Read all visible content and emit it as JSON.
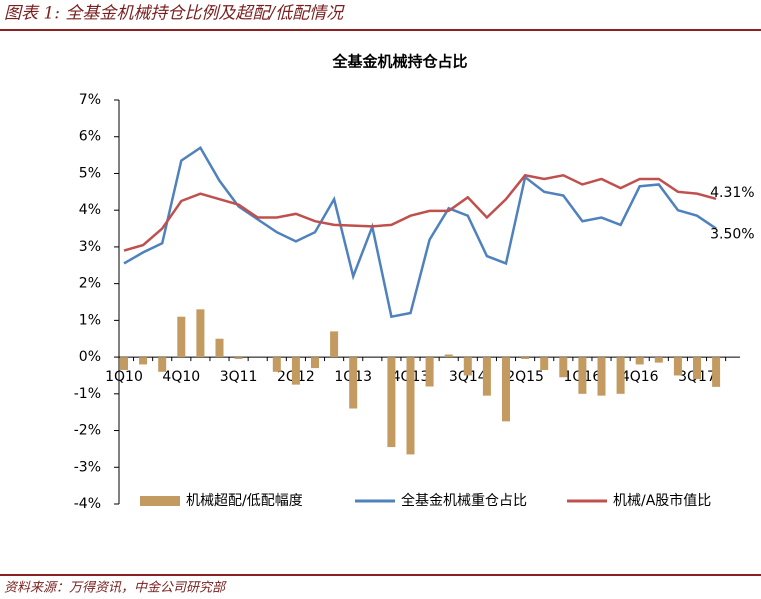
{
  "header": {
    "title": "图表 1:  全基金机械持仓比例及超配/低配情况"
  },
  "footer": {
    "source": "资料来源：万得资讯，中金公司研究部"
  },
  "chart_data": {
    "type": "bar-line",
    "title": "全基金机械持仓占比",
    "categories": [
      "1Q10",
      null,
      null,
      "4Q10",
      null,
      null,
      "3Q11",
      null,
      null,
      "2Q12",
      null,
      null,
      "1Q13",
      null,
      null,
      "4Q13",
      null,
      null,
      "3Q14",
      null,
      null,
      "2Q15",
      null,
      null,
      "1Q16",
      null,
      null,
      "4Q16",
      null,
      null,
      "3Q17",
      null
    ],
    "ylim": [
      -4,
      7
    ],
    "yticks": [
      {
        "value": -4,
        "label": "-4%"
      },
      {
        "value": -3,
        "label": "-3%"
      },
      {
        "value": -2,
        "label": "-2%"
      },
      {
        "value": -1,
        "label": "-1%"
      },
      {
        "value": 0,
        "label": "0%"
      },
      {
        "value": 1,
        "label": "1%"
      },
      {
        "value": 2,
        "label": "2%"
      },
      {
        "value": 3,
        "label": "3%"
      },
      {
        "value": 4,
        "label": "4%"
      },
      {
        "value": 5,
        "label": "5%"
      },
      {
        "value": 6,
        "label": "6%"
      },
      {
        "value": 7,
        "label": "7%"
      }
    ],
    "legend": "bottom",
    "series": [
      {
        "name": "机械超配/低配幅度",
        "type": "bar",
        "color": "#c39a5f",
        "values": [
          -0.35,
          -0.2,
          -0.4,
          1.1,
          1.3,
          0.5,
          -0.05,
          0,
          -0.4,
          -0.75,
          -0.3,
          0.7,
          -1.4,
          0,
          -2.45,
          -2.65,
          -0.8,
          0.07,
          -0.5,
          -1.05,
          -1.75,
          -0.05,
          -0.35,
          -0.55,
          -1.0,
          -1.05,
          -1.0,
          -0.2,
          -0.15,
          -0.5,
          -0.6,
          -0.81
        ]
      },
      {
        "name": "全基金机械重仓占比",
        "type": "line",
        "color": "#4f81bd",
        "values": [
          2.55,
          2.85,
          3.1,
          5.35,
          5.7,
          4.8,
          4.1,
          3.75,
          3.4,
          3.15,
          3.4,
          4.3,
          2.2,
          3.55,
          1.1,
          1.2,
          3.2,
          4.05,
          3.85,
          2.75,
          2.55,
          4.9,
          4.5,
          4.4,
          3.7,
          3.8,
          3.6,
          4.65,
          4.7,
          4.0,
          3.85,
          3.5
        ],
        "value_labels": [
          null,
          null,
          null,
          null,
          null,
          null,
          null,
          null,
          null,
          null,
          null,
          null,
          null,
          null,
          null,
          null,
          null,
          null,
          null,
          null,
          null,
          null,
          null,
          null,
          null,
          null,
          null,
          null,
          null,
          null,
          null,
          "3.50%"
        ]
      },
      {
        "name": "机械/A股市值比",
        "type": "line",
        "color": "#c0504d",
        "values": [
          2.9,
          3.05,
          3.5,
          4.25,
          4.45,
          4.3,
          4.15,
          3.8,
          3.8,
          3.9,
          3.7,
          3.6,
          3.58,
          3.56,
          3.6,
          3.85,
          3.98,
          3.98,
          4.35,
          3.8,
          4.3,
          4.95,
          4.85,
          4.95,
          4.7,
          4.85,
          4.6,
          4.85,
          4.85,
          4.5,
          4.45,
          4.31
        ],
        "value_labels": [
          null,
          null,
          null,
          null,
          null,
          null,
          null,
          null,
          null,
          null,
          null,
          null,
          null,
          null,
          null,
          null,
          null,
          null,
          null,
          null,
          null,
          null,
          null,
          null,
          null,
          null,
          null,
          null,
          null,
          null,
          null,
          "4.31%"
        ]
      }
    ]
  }
}
